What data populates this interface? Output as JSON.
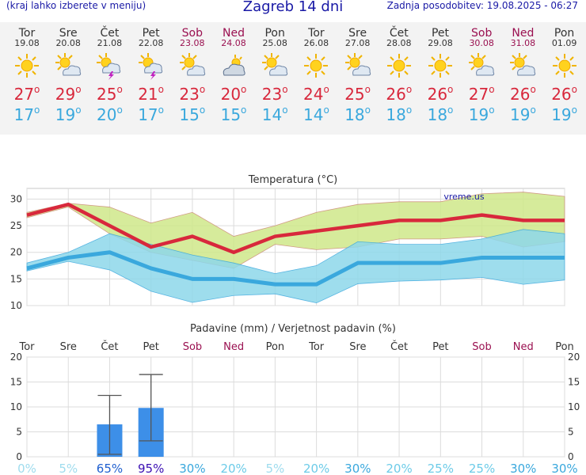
{
  "header": {
    "menu_hint": "(kraj lahko izberete v meniju)",
    "title": "Zagreb 14 dni",
    "updated": "Zadnja posodobitev: 19.08.2025 - 06:27"
  },
  "days": [
    {
      "name": "Tor",
      "date": "19.08",
      "weekend": false,
      "icon": "sun-icon",
      "tmax": "27",
      "tmin": "17"
    },
    {
      "name": "Sre",
      "date": "20.08",
      "weekend": false,
      "icon": "sun-cloud-icon",
      "tmax": "29",
      "tmin": "19"
    },
    {
      "name": "Čet",
      "date": "21.08",
      "weekend": false,
      "icon": "storm-icon",
      "tmax": "25",
      "tmin": "20"
    },
    {
      "name": "Pet",
      "date": "22.08",
      "weekend": false,
      "icon": "storm-icon",
      "tmax": "21",
      "tmin": "17"
    },
    {
      "name": "Sob",
      "date": "23.08",
      "weekend": true,
      "icon": "sun-cloud-icon",
      "tmax": "23",
      "tmin": "15"
    },
    {
      "name": "Ned",
      "date": "24.08",
      "weekend": true,
      "icon": "cloud-icon",
      "tmax": "20",
      "tmin": "15"
    },
    {
      "name": "Pon",
      "date": "25.08",
      "weekend": false,
      "icon": "sun-cloud-icon",
      "tmax": "23",
      "tmin": "14"
    },
    {
      "name": "Tor",
      "date": "26.08",
      "weekend": false,
      "icon": "sun-icon",
      "tmax": "24",
      "tmin": "14"
    },
    {
      "name": "Sre",
      "date": "27.08",
      "weekend": false,
      "icon": "sun-cloud-icon",
      "tmax": "25",
      "tmin": "18"
    },
    {
      "name": "Čet",
      "date": "28.08",
      "weekend": false,
      "icon": "sun-icon",
      "tmax": "26",
      "tmin": "18"
    },
    {
      "name": "Pet",
      "date": "29.08",
      "weekend": false,
      "icon": "sun-icon",
      "tmax": "26",
      "tmin": "18"
    },
    {
      "name": "Sob",
      "date": "30.08",
      "weekend": true,
      "icon": "sun-cloud-icon",
      "tmax": "27",
      "tmin": "19"
    },
    {
      "name": "Ned",
      "date": "31.08",
      "weekend": true,
      "icon": "sun-cloud-icon",
      "tmax": "26",
      "tmin": "19"
    },
    {
      "name": "Pon",
      "date": "01.09",
      "weekend": false,
      "icon": "sun-icon",
      "tmax": "26",
      "tmin": "19"
    }
  ],
  "colors": {
    "max": "#d8283c",
    "min": "#3aa8dd",
    "weekend": "#9a1050",
    "bar": "#3d8fe8"
  },
  "chart_data": [
    {
      "type": "line",
      "title": "Temperatura (°C)",
      "watermark": "vreme.us",
      "x": [
        "19.08",
        "20.08",
        "21.08",
        "22.08",
        "23.08",
        "24.08",
        "25.08",
        "26.08",
        "27.08",
        "28.08",
        "29.08",
        "30.08",
        "31.08",
        "01.09"
      ],
      "ylim": [
        10,
        32
      ],
      "yticks": [
        10,
        15,
        20,
        25,
        30
      ],
      "grid": true,
      "series": [
        {
          "values": [
            27,
            29,
            25,
            21,
            23,
            20,
            23,
            24,
            25,
            26,
            26,
            27,
            26,
            26
          ]
        },
        {
          "values": [
            17,
            19,
            20,
            17,
            15,
            15,
            14,
            14,
            18,
            18,
            18,
            19,
            19,
            19
          ]
        }
      ],
      "max_range_hi": [
        27.5,
        29.2,
        28.5,
        25.5,
        27.5,
        23,
        25,
        27.5,
        29,
        29.5,
        29.5,
        31,
        31.3,
        30.5
      ],
      "max_range_lo": [
        26.5,
        28.5,
        23.5,
        20,
        18.5,
        17,
        21.5,
        20.5,
        21,
        22.5,
        22.5,
        23,
        21,
        22
      ],
      "min_range_hi": [
        18,
        20,
        23.5,
        21.5,
        19.5,
        18,
        16,
        17.5,
        22,
        21.5,
        21.5,
        22.5,
        24.3,
        23.5
      ],
      "min_range_lo": [
        16.5,
        18.3,
        16.7,
        12.7,
        10.6,
        11.9,
        12.2,
        10.5,
        14.1,
        14.6,
        14.8,
        15.3,
        14,
        14.8
      ]
    },
    {
      "type": "bar",
      "title": "Padavine (mm) / Verjetnost padavin (%)",
      "categories": [
        "Tor",
        "Sre",
        "Čet",
        "Pet",
        "Sob",
        "Ned",
        "Pon",
        "Tor",
        "Sre",
        "Čet",
        "Pet",
        "Sob",
        "Ned",
        "Pon"
      ],
      "values": [
        0,
        0,
        6.5,
        9.8,
        0,
        0,
        0,
        0,
        0,
        0,
        0,
        0,
        0,
        0
      ],
      "err_hi": [
        0,
        0,
        12.3,
        16.5,
        0,
        0,
        0,
        0,
        0,
        0,
        0,
        0,
        0,
        0
      ],
      "err_lo": [
        0,
        0,
        0.5,
        3.2,
        0,
        0,
        0,
        0,
        0,
        0,
        0,
        0,
        0,
        0
      ],
      "ylim": [
        0,
        20
      ],
      "yticks": [
        0,
        5,
        10,
        15,
        20
      ],
      "probability": [
        "0%",
        "5%",
        "65%",
        "95%",
        "30%",
        "20%",
        "5%",
        "20%",
        "30%",
        "20%",
        "25%",
        "25%",
        "30%",
        "30%"
      ]
    }
  ]
}
